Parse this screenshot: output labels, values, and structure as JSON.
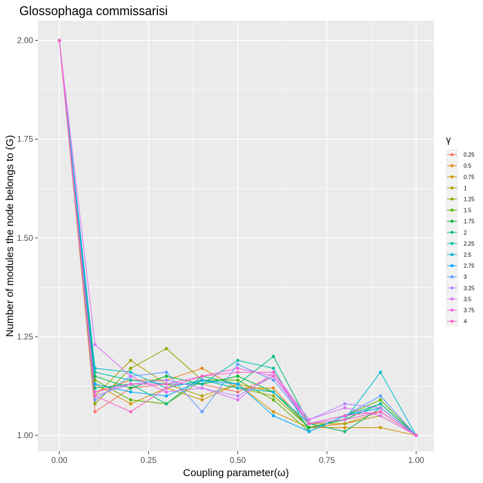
{
  "chart_data": {
    "type": "line",
    "title": "Glossophaga commissarisi",
    "xlabel": "Coupling parameter(ω)",
    "ylabel": "Number of modules the node belongs to (G)",
    "xlim": [
      -0.06,
      1.05
    ],
    "ylim": [
      0.96,
      2.05
    ],
    "x_ticks": [
      0.0,
      0.25,
      0.5,
      0.75,
      1.0
    ],
    "x_tick_labels": [
      "0.00",
      "0.25",
      "0.50",
      "0.75",
      "1.00"
    ],
    "y_ticks": [
      1.0,
      1.25,
      1.5,
      1.75,
      2.0
    ],
    "y_tick_labels": [
      "1.00",
      "1.25",
      "1.50",
      "1.75",
      "2.00"
    ],
    "grid": true,
    "legend_title": "γ",
    "legend_position": "right",
    "x": [
      0.0,
      0.1,
      0.2,
      0.3,
      0.4,
      0.5,
      0.6,
      0.7,
      0.8,
      0.9,
      1.0
    ],
    "series": [
      {
        "name": "0.25",
        "color": "#F8766D",
        "values": [
          2.0,
          1.06,
          1.12,
          1.13,
          1.13,
          1.11,
          1.15,
          1.03,
          1.01,
          1.07,
          1.0
        ]
      },
      {
        "name": "0.5",
        "color": "#E7861B",
        "values": [
          2.0,
          1.11,
          1.14,
          1.14,
          1.17,
          1.12,
          1.12,
          1.02,
          1.03,
          1.06,
          1.0
        ]
      },
      {
        "name": "0.75",
        "color": "#D09400",
        "values": [
          2.0,
          1.13,
          1.08,
          1.12,
          1.09,
          1.13,
          1.06,
          1.02,
          1.02,
          1.02,
          1.0
        ]
      },
      {
        "name": "1",
        "color": "#B2A000",
        "values": [
          2.0,
          1.1,
          1.19,
          1.13,
          1.1,
          1.13,
          1.11,
          1.03,
          1.03,
          1.05,
          1.0
        ]
      },
      {
        "name": "1.25",
        "color": "#8EAB00",
        "values": [
          2.0,
          1.08,
          1.17,
          1.22,
          1.14,
          1.12,
          1.1,
          1.02,
          1.04,
          1.06,
          1.0
        ]
      },
      {
        "name": "1.5",
        "color": "#5BB300",
        "values": [
          2.0,
          1.14,
          1.09,
          1.08,
          1.14,
          1.14,
          1.09,
          1.01,
          1.05,
          1.09,
          1.0
        ]
      },
      {
        "name": "1.75",
        "color": "#00BA38",
        "values": [
          2.0,
          1.15,
          1.12,
          1.15,
          1.13,
          1.15,
          1.11,
          1.02,
          1.04,
          1.08,
          1.0
        ]
      },
      {
        "name": "2",
        "color": "#00BD73",
        "values": [
          2.0,
          1.12,
          1.13,
          1.08,
          1.15,
          1.13,
          1.2,
          1.03,
          1.01,
          1.07,
          1.0
        ]
      },
      {
        "name": "2.25",
        "color": "#00BFA3",
        "values": [
          2.0,
          1.16,
          1.14,
          1.13,
          1.13,
          1.19,
          1.17,
          1.01,
          1.05,
          1.08,
          1.0
        ]
      },
      {
        "name": "2.5",
        "color": "#00BBCC",
        "values": [
          2.0,
          1.17,
          1.16,
          1.12,
          1.14,
          1.12,
          1.11,
          1.03,
          1.04,
          1.16,
          1.0
        ]
      },
      {
        "name": "2.75",
        "color": "#00ABFD",
        "values": [
          2.0,
          1.13,
          1.11,
          1.1,
          1.14,
          1.13,
          1.05,
          1.01,
          1.05,
          1.07,
          1.0
        ]
      },
      {
        "name": "3",
        "color": "#619CFF",
        "values": [
          2.0,
          1.09,
          1.15,
          1.16,
          1.06,
          1.18,
          1.14,
          1.03,
          1.05,
          1.1,
          1.0
        ]
      },
      {
        "name": "3.25",
        "color": "#B385FF",
        "values": [
          2.0,
          1.1,
          1.13,
          1.14,
          1.12,
          1.1,
          1.15,
          1.04,
          1.08,
          1.07,
          1.0
        ]
      },
      {
        "name": "3.5",
        "color": "#DB72FB",
        "values": [
          2.0,
          1.23,
          1.15,
          1.11,
          1.12,
          1.09,
          1.16,
          1.04,
          1.07,
          1.05,
          1.0
        ]
      },
      {
        "name": "3.75",
        "color": "#F064E2",
        "values": [
          2.0,
          1.11,
          1.13,
          1.13,
          1.15,
          1.17,
          1.15,
          1.03,
          1.04,
          1.06,
          1.0
        ]
      },
      {
        "name": "4",
        "color": "#FF61C3",
        "values": [
          2.0,
          1.1,
          1.06,
          1.12,
          1.15,
          1.16,
          1.16,
          1.03,
          1.05,
          1.06,
          1.0
        ]
      }
    ]
  }
}
